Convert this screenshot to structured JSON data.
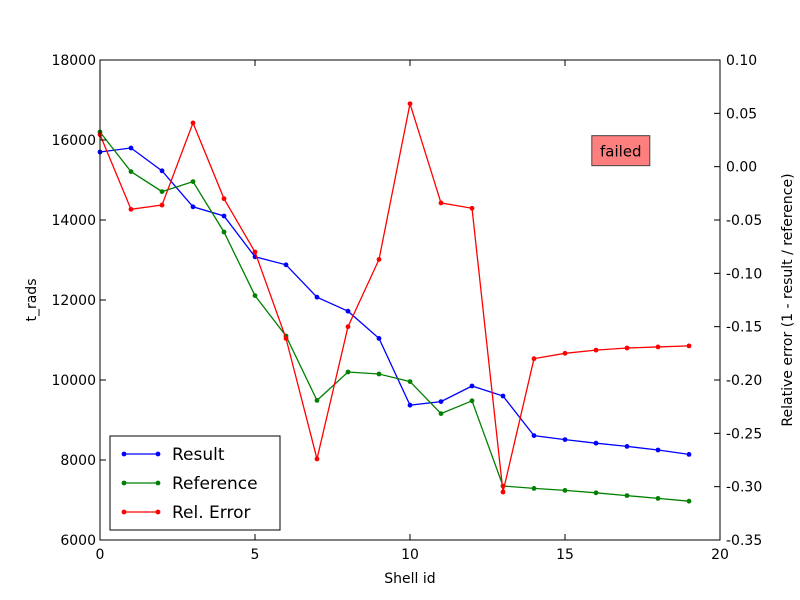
{
  "chart_data": {
    "type": "line",
    "xlabel": "Shell id",
    "ylabel_left": "t_rads",
    "ylabel_right": "Relative error (1 - result / reference)",
    "xlim": [
      0,
      20
    ],
    "ylim_left": [
      6000,
      18000
    ],
    "ylim_right": [
      -0.35,
      0.1
    ],
    "x_ticks": [
      0,
      5,
      10,
      15,
      20
    ],
    "y_ticks_left": [
      6000,
      8000,
      10000,
      12000,
      14000,
      16000,
      18000
    ],
    "y_ticks_right": [
      -0.35,
      -0.3,
      -0.25,
      -0.2,
      -0.15,
      -0.1,
      -0.05,
      0.0,
      0.05,
      0.1
    ],
    "y_tick_labels_right": [
      "-0.35",
      "-0.30",
      "-0.25",
      "-0.20",
      "-0.15",
      "-0.10",
      "-0.05",
      "0.00",
      "0.05",
      "0.10"
    ],
    "grid": false,
    "legend_position": "lower-left",
    "x": [
      0,
      1,
      2,
      3,
      4,
      5,
      6,
      7,
      8,
      9,
      10,
      11,
      12,
      13,
      14,
      15,
      16,
      17,
      18,
      19
    ],
    "series": [
      {
        "name": "Result",
        "axis": "left",
        "color": "#0000ff",
        "values": [
          15700,
          15800,
          15230,
          14330,
          14100,
          13080,
          12880,
          12070,
          11720,
          11040,
          9370,
          9460,
          9850,
          9600,
          8610,
          8510,
          8420,
          8340,
          8250,
          8140
        ]
      },
      {
        "name": "Reference",
        "axis": "left",
        "color": "#008000",
        "values": [
          16200,
          15210,
          14710,
          14960,
          13700,
          12110,
          11100,
          9490,
          10200,
          10150,
          9960,
          9160,
          9480,
          7350,
          7290,
          7240,
          7180,
          7110,
          7040,
          6970
        ]
      },
      {
        "name": "Rel. Error",
        "axis": "right",
        "color": "#ff0000",
        "values": [
          0.03,
          -0.04,
          -0.036,
          0.041,
          -0.03,
          -0.08,
          -0.161,
          -0.274,
          -0.15,
          -0.087,
          0.059,
          -0.034,
          -0.039,
          -0.305,
          -0.18,
          -0.175,
          -0.172,
          -0.17,
          -0.169,
          -0.168
        ]
      }
    ],
    "annotation": {
      "text": "failed",
      "background": "#ff7f7f",
      "x": 16.8,
      "y_right": 0.015
    }
  }
}
